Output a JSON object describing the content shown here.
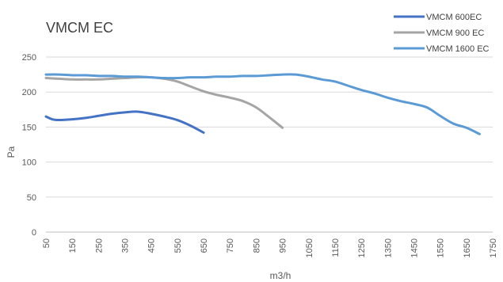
{
  "chart_data": {
    "type": "line",
    "title": "VMCM EC",
    "xlabel": "m3/h",
    "ylabel": "Pa",
    "ylim": [
      0,
      250
    ],
    "yticks": [
      0,
      50,
      100,
      150,
      200,
      250
    ],
    "xlim": [
      50,
      1750
    ],
    "xticks": [
      50,
      150,
      250,
      350,
      450,
      550,
      650,
      750,
      850,
      950,
      1050,
      1150,
      1250,
      1350,
      1450,
      1550,
      1650,
      1750
    ],
    "grid": true,
    "legend_position": "top-right",
    "colors": {
      "VMCM 600EC": "#4472C4",
      "VMCM 900 EC": "#A5A5A5",
      "VMCM 1600 EC": "#5B9BD5"
    },
    "series": [
      {
        "name": "VMCM 600EC",
        "x": [
          50,
          75,
          100,
          150,
          200,
          250,
          300,
          350,
          400,
          450,
          500,
          550,
          600,
          650
        ],
        "y": [
          165,
          161,
          160,
          161,
          163,
          166,
          169,
          171,
          172,
          169,
          165,
          160,
          152,
          142
        ]
      },
      {
        "name": "VMCM 900 EC",
        "x": [
          50,
          100,
          150,
          200,
          250,
          300,
          350,
          400,
          450,
          500,
          550,
          600,
          650,
          700,
          750,
          800,
          850,
          900,
          950
        ],
        "y": [
          220,
          219,
          218,
          218,
          218,
          219,
          220,
          221,
          221,
          219,
          215,
          208,
          201,
          196,
          192,
          187,
          178,
          164,
          149
        ]
      },
      {
        "name": "VMCM 1600 EC",
        "x": [
          50,
          100,
          150,
          200,
          250,
          300,
          350,
          400,
          450,
          500,
          550,
          600,
          650,
          700,
          750,
          800,
          850,
          900,
          950,
          1000,
          1050,
          1100,
          1150,
          1200,
          1250,
          1300,
          1350,
          1400,
          1450,
          1500,
          1550,
          1600,
          1650,
          1700
        ],
        "y": [
          225,
          225,
          224,
          224,
          223,
          223,
          222,
          222,
          221,
          220,
          220,
          221,
          221,
          222,
          222,
          223,
          223,
          224,
          225,
          225,
          222,
          218,
          215,
          209,
          203,
          198,
          192,
          187,
          183,
          178,
          166,
          155,
          149,
          140
        ]
      }
    ]
  }
}
